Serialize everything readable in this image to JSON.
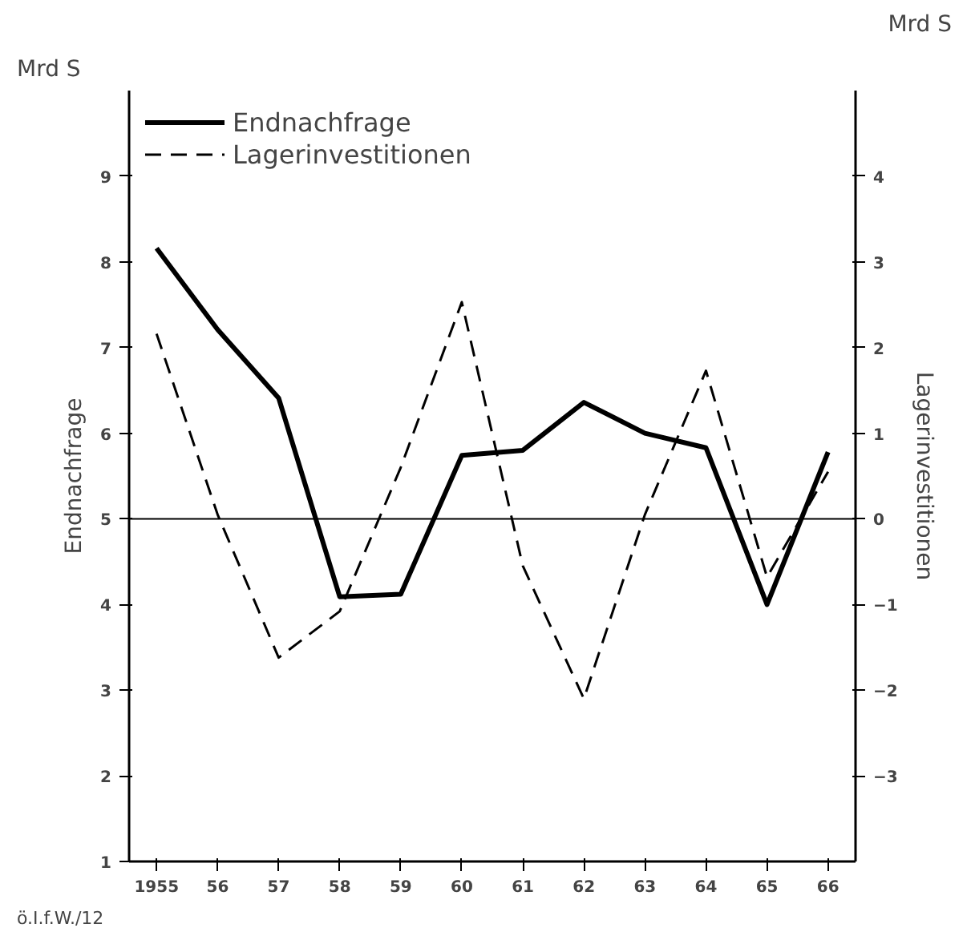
{
  "chart_data": {
    "type": "line",
    "x": [
      1955,
      1956,
      1957,
      1958,
      1959,
      1960,
      1961,
      1962,
      1963,
      1964,
      1965,
      1966
    ],
    "series": [
      {
        "name": "Endnachfrage",
        "color": "#000000",
        "line_style": "solid",
        "values": [
          8.16,
          7.21,
          6.41,
          4.09,
          4.12,
          5.74,
          5.8,
          6.36,
          6.0,
          5.83,
          4.0,
          5.78
        ]
      },
      {
        "name": "Lagerinvestitionen",
        "color": "#000000",
        "line_style": "dashed",
        "axis": "y2",
        "values": [
          2.16,
          0.05,
          -1.62,
          -1.08,
          0.6,
          2.53,
          -0.55,
          -2.1,
          0.05,
          1.73,
          -0.68,
          0.55
        ]
      }
    ],
    "xlim": [
      1954.55,
      1966.45
    ],
    "xticks": [
      1955,
      {
        "value": 1956,
        "label": "56"
      },
      {
        "value": 1957,
        "label": "57"
      },
      {
        "value": 1958,
        "label": "58"
      },
      {
        "value": 1959,
        "label": "59"
      },
      {
        "value": 1960,
        "label": "60"
      },
      {
        "value": 1961,
        "label": "61"
      },
      {
        "value": 1962,
        "label": "62"
      },
      {
        "value": 1963,
        "label": "63"
      },
      {
        "value": 1964,
        "label": "64"
      },
      {
        "value": 1965,
        "label": "65"
      },
      {
        "value": 1966,
        "label": "66"
      }
    ],
    "ylim": [
      1,
      10
    ],
    "yticks": [
      1,
      2,
      3,
      4,
      5,
      6,
      7,
      8,
      9
    ],
    "y2lim": [
      -4,
      5
    ],
    "y2ticks": [
      -3,
      -2,
      -1,
      0,
      1,
      2,
      3,
      4
    ],
    "ylabel": "Endnachfrage",
    "y2label": "Lagerinvestitionen",
    "ref_lines": [
      {
        "axis": "y2",
        "value": 0,
        "color": "#000000"
      }
    ],
    "annotations": [
      "Mrd S",
      "Mrd S",
      "ö.I.f.W./12"
    ],
    "legend": "top left",
    "grid": false,
    "marker": "none"
  }
}
